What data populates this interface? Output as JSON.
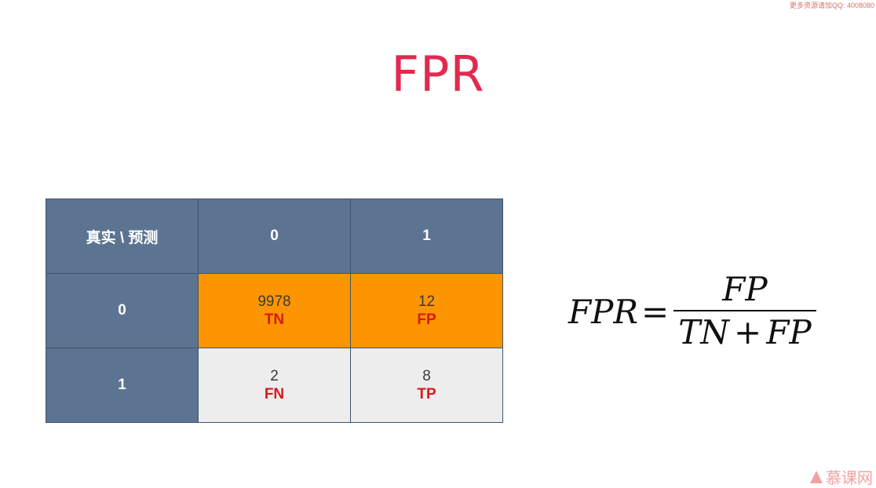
{
  "watermark_top": "更多资源请加QQ: 4008080",
  "title": "FPR",
  "matrix": {
    "corner": "真实 \\ 预测",
    "col_headers": [
      "0",
      "1"
    ],
    "rows": [
      {
        "header": "0",
        "cells": [
          {
            "value": "9978",
            "label": "TN"
          },
          {
            "value": "12",
            "label": "FP"
          }
        ]
      },
      {
        "header": "1",
        "cells": [
          {
            "value": "2",
            "label": "FN"
          },
          {
            "value": "8",
            "label": "TP"
          }
        ]
      }
    ]
  },
  "formula": {
    "lhs": "FPR",
    "eq": "=",
    "numerator": "FP",
    "den_left": "TN",
    "den_op": "+",
    "den_right": "FP"
  },
  "logo": {
    "text": "慕课网"
  },
  "colors": {
    "title": "#e02a4f",
    "header_bg": "#5c7491",
    "highlight_row": "#fd9500",
    "plain_row": "#ededee",
    "label_red": "#d8191c"
  }
}
